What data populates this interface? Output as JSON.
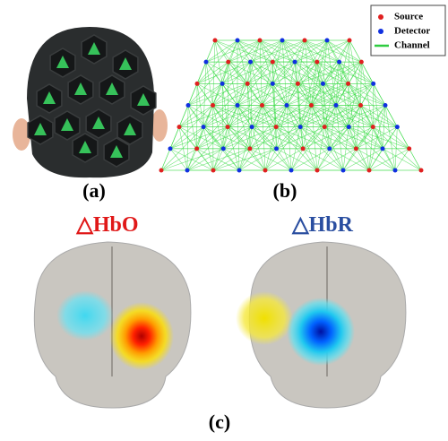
{
  "panels": {
    "a": {
      "label": "(a)"
    },
    "b": {
      "label": "(b)",
      "legend": [
        "Source",
        "Detector",
        "Channel"
      ]
    },
    "c": {
      "label": "(c)",
      "titles": [
        "△HbO",
        "△HbR"
      ]
    }
  }
}
